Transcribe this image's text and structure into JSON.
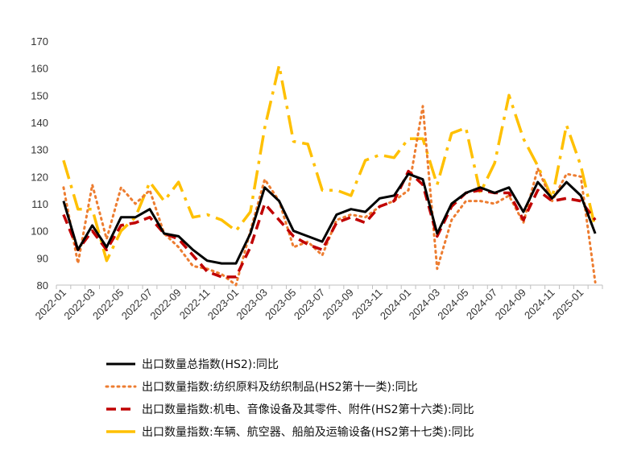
{
  "chart_data": {
    "type": "line",
    "title": "",
    "xlabel": "",
    "ylabel": "",
    "ylim": [
      80,
      170
    ],
    "yticks": [
      80,
      90,
      100,
      110,
      120,
      130,
      140,
      150,
      160,
      170
    ],
    "grid": false,
    "legend_position": "bottom",
    "x": [
      "2022-01",
      "2022-02",
      "2022-03",
      "2022-04",
      "2022-05",
      "2022-06",
      "2022-07",
      "2022-08",
      "2022-09",
      "2022-10",
      "2022-11",
      "2022-12",
      "2023-01",
      "2023-02",
      "2023-03",
      "2023-04",
      "2023-05",
      "2023-06",
      "2023-07",
      "2023-08",
      "2023-09",
      "2023-10",
      "2023-11",
      "2023-12",
      "2024-01",
      "2024-02",
      "2024-03",
      "2024-04",
      "2024-05",
      "2024-06",
      "2024-07",
      "2024-08",
      "2024-09",
      "2024-10",
      "2024-11",
      "2024-12",
      "2025-01",
      "2025-02"
    ],
    "xtick_labels": [
      "2022-01",
      "2022-03",
      "2022-05",
      "2022-07",
      "2022-09",
      "2022-11",
      "2023-01",
      "2023-03",
      "2023-05",
      "2023-07",
      "2023-09",
      "2023-11",
      "2024-01",
      "2024-03",
      "2024-05",
      "2024-07",
      "2024-09",
      "2024-11",
      "2025-01"
    ],
    "series": [
      {
        "name": "出口数量总指数(HS2):同比",
        "color": "#000000",
        "style": "solid",
        "values": [
          111,
          93,
          102,
          94,
          105,
          105,
          108,
          99,
          98,
          93,
          89,
          88,
          88,
          99,
          116,
          111,
          100,
          98,
          96,
          106,
          108,
          107,
          112,
          113,
          121,
          119,
          99,
          110,
          114,
          116,
          114,
          116,
          107,
          118,
          112,
          118,
          113,
          99
        ]
      },
      {
        "name": "出口数量指数:纺织原料及纺织制品(HS2第十一类):同比",
        "color": "#ED7D31",
        "style": "dotted",
        "values": [
          116,
          88,
          117,
          97,
          116,
          110,
          115,
          99,
          94,
          87,
          86,
          84,
          80,
          100,
          119,
          111,
          94,
          96,
          91,
          104,
          106,
          105,
          109,
          111,
          115,
          146,
          86,
          104,
          111,
          111,
          110,
          113,
          103,
          123,
          111,
          121,
          120,
          81
        ]
      },
      {
        "name": "出口数量指数:机电、音像设备及其零件、附件(HS2第十六类):同比",
        "color": "#C00000",
        "style": "dashed",
        "values": [
          106,
          93,
          100,
          93,
          102,
          103,
          105,
          99,
          97,
          91,
          85,
          83,
          83,
          94,
          110,
          104,
          98,
          95,
          93,
          103,
          105,
          103,
          109,
          111,
          122,
          117,
          98,
          109,
          114,
          115,
          114,
          114,
          104,
          115,
          111,
          112,
          111,
          104
        ]
      },
      {
        "name": "出口数量指数:车辆、航空器、船舶及运输设备(HS2第十七类):同比",
        "color": "#FFC000",
        "style": "dashdot",
        "values": [
          126,
          108,
          108,
          89,
          100,
          105,
          118,
          111,
          118,
          105,
          106,
          104,
          100,
          107,
          138,
          161,
          133,
          132,
          115,
          115,
          113,
          126,
          128,
          127,
          134,
          134,
          117,
          136,
          138,
          114,
          125,
          150,
          134,
          124,
          112,
          139,
          124,
          101
        ]
      }
    ]
  }
}
